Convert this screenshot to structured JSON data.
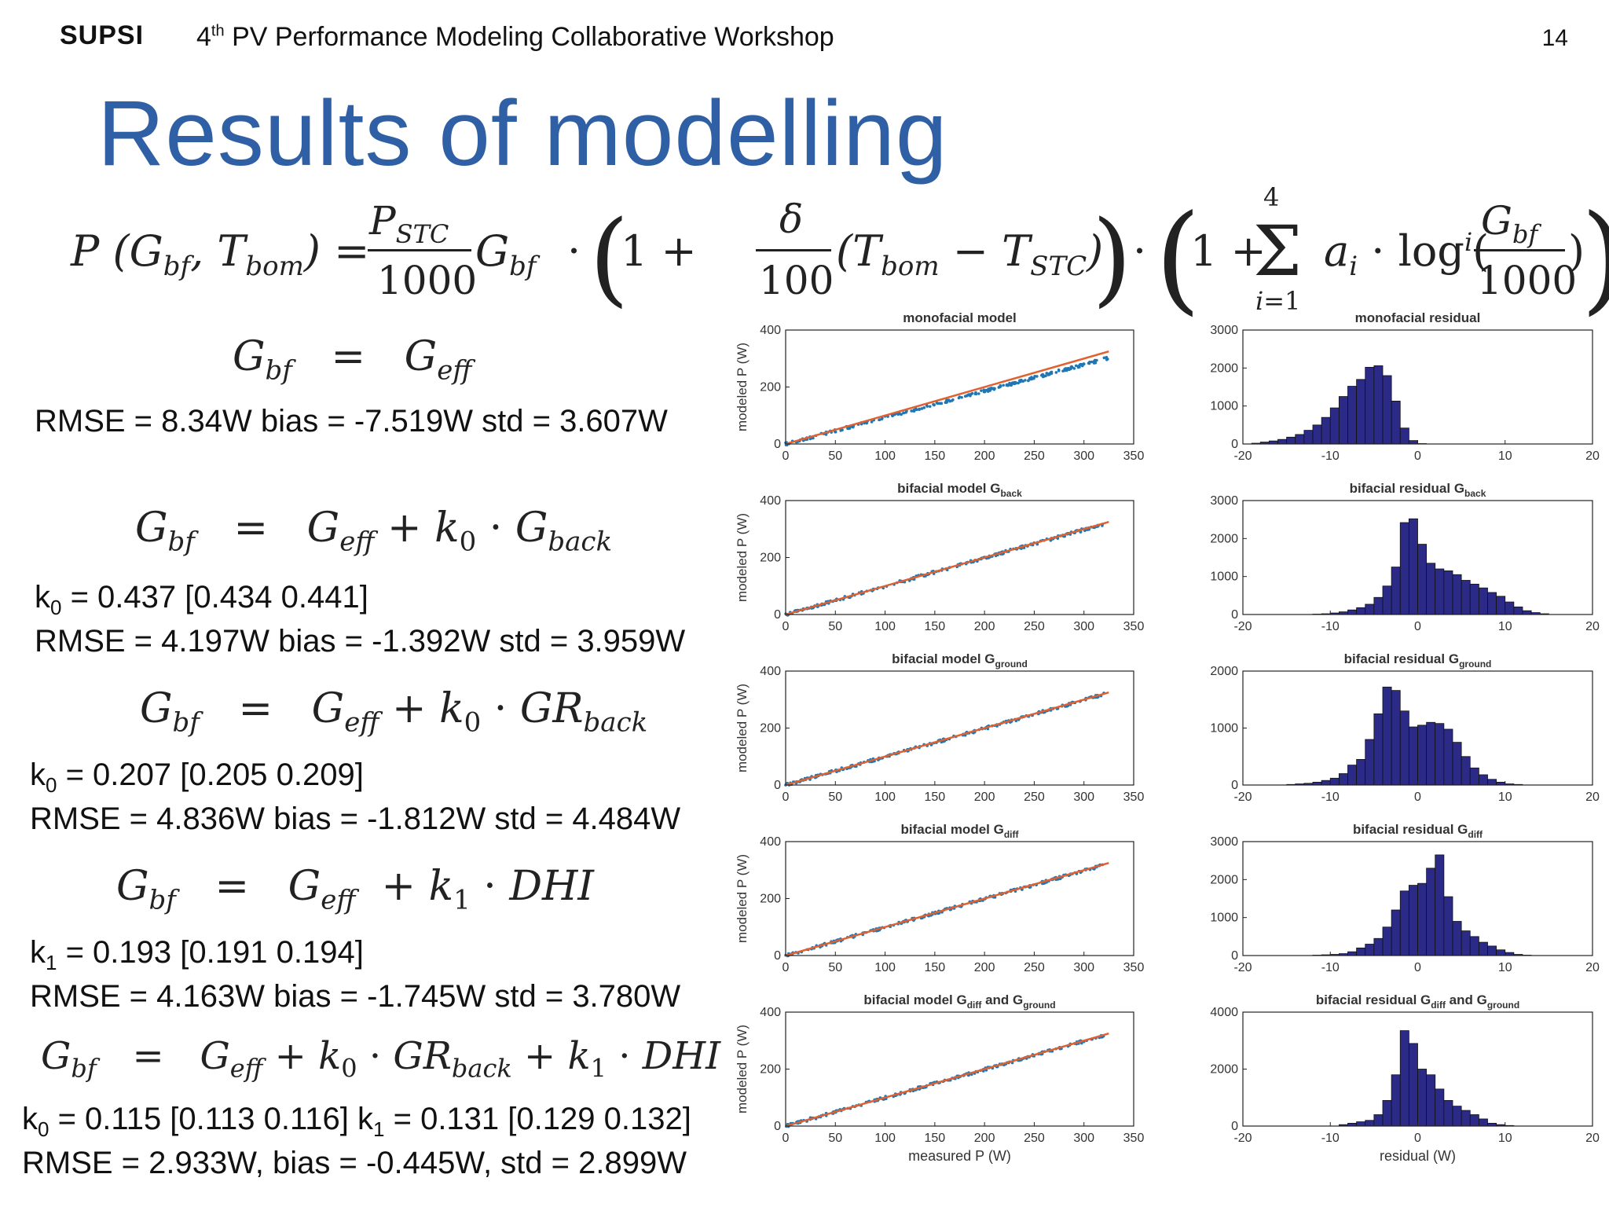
{
  "header": {
    "logo": "SUPSI",
    "workshop_ordinal": "4",
    "workshop_sup": "th",
    "workshop_title": "PV Performance Modeling Collaborative Workshop",
    "page_number": "14"
  },
  "title": "Results of modelling",
  "main_formula": {
    "lhs": "P (G",
    "text": "P(Gbf, Tbom) = PSTC/1000 · Gbf · (1 + δ/100 (Tbom − TSTC)) · (1 + Σ_{i=1}^{4} ai · log^i(Gbf/1000))"
  },
  "models": [
    {
      "equation": "Gbf = Geff",
      "stats": [
        "RMSE = 8.34W bias = -7.519W std = 3.607W"
      ]
    },
    {
      "equation": "Gbf = Geff + k0 · Gback",
      "stats": [
        "k0 = 0.437 [0.434 0.441]",
        "RMSE = 4.197W bias = -1.392W std = 3.959W"
      ]
    },
    {
      "equation": "Gbf = Geff + k0 · GRback",
      "stats": [
        "k0 = 0.207 [0.205 0.209]",
        "RMSE = 4.836W bias = -1.812W std = 4.484W"
      ]
    },
    {
      "equation": "Gbf = Geff + k1 · DHI",
      "stats": [
        "k1 = 0.193 [0.191 0.194]",
        "RMSE = 4.163W bias = -1.745W std = 3.780W"
      ]
    },
    {
      "equation": "Gbf = Geff + k0 · GRback + k1 · DHI",
      "stats": [
        "k0 = 0.115 [0.113 0.116] k1 = 0.131 [0.129 0.132]",
        "RMSE = 2.933W, bias = -0.445W, std = 2.899W"
      ]
    }
  ],
  "chart_data": [
    {
      "type": "scatter",
      "title": "monofacial model",
      "xlabel": "",
      "ylabel": "modeled P (W)",
      "xlim": [
        0,
        350
      ],
      "ylim": [
        0,
        400
      ],
      "xticks": [
        0,
        50,
        100,
        150,
        200,
        250,
        300,
        350
      ],
      "yticks": [
        0,
        200,
        400
      ],
      "series": [
        {
          "kind": "points",
          "x": [
            0,
            325
          ],
          "y": [
            0,
            302
          ]
        },
        {
          "kind": "line",
          "x": [
            0,
            325
          ],
          "y": [
            0,
            325
          ]
        }
      ]
    },
    {
      "type": "bar",
      "title": "monofacial residual",
      "xlabel": "",
      "ylabel": "",
      "xlim": [
        -20,
        20
      ],
      "ylim": [
        0,
        3000
      ],
      "xticks": [
        -20,
        -10,
        0,
        10,
        20
      ],
      "yticks": [
        0,
        1000,
        2000,
        3000
      ],
      "bin_width": 1,
      "bin_start": -20,
      "values": [
        0,
        20,
        50,
        80,
        120,
        180,
        250,
        360,
        500,
        700,
        950,
        1250,
        1520,
        1700,
        2020,
        2060,
        1800,
        1130,
        420,
        90,
        10,
        0,
        0,
        0,
        0,
        0,
        0,
        0,
        0,
        0,
        0,
        0,
        0,
        0,
        0,
        0,
        0,
        0,
        0,
        0
      ]
    },
    {
      "type": "scatter",
      "title": "bifacial model G",
      "title_sub": "back",
      "xlabel": "",
      "ylabel": "modeled P (W)",
      "xlim": [
        0,
        350
      ],
      "ylim": [
        0,
        400
      ],
      "xticks": [
        0,
        50,
        100,
        150,
        200,
        250,
        300,
        350
      ],
      "yticks": [
        0,
        200,
        400
      ],
      "series": [
        {
          "kind": "points",
          "x": [
            0,
            320
          ],
          "y": [
            0,
            318
          ]
        },
        {
          "kind": "line",
          "x": [
            0,
            325
          ],
          "y": [
            0,
            325
          ]
        }
      ]
    },
    {
      "type": "bar",
      "title": "bifacial residual G",
      "title_sub": "back",
      "xlabel": "",
      "ylabel": "",
      "xlim": [
        -20,
        20
      ],
      "ylim": [
        0,
        3000
      ],
      "xticks": [
        -20,
        -10,
        0,
        10,
        20
      ],
      "yticks": [
        0,
        1000,
        2000,
        3000
      ],
      "bin_width": 1,
      "bin_start": -20,
      "values": [
        0,
        0,
        0,
        0,
        0,
        0,
        0,
        0,
        10,
        20,
        40,
        70,
        120,
        180,
        270,
        450,
        750,
        1250,
        2420,
        2520,
        1850,
        1350,
        1200,
        1150,
        1050,
        900,
        800,
        700,
        580,
        480,
        330,
        200,
        100,
        50,
        20,
        0,
        0,
        0,
        0,
        0
      ]
    },
    {
      "type": "scatter",
      "title": "bifacial model G",
      "title_sub": "ground",
      "xlabel": "",
      "ylabel": "modeled P (W)",
      "xlim": [
        0,
        350
      ],
      "ylim": [
        0,
        400
      ],
      "xticks": [
        0,
        50,
        100,
        150,
        200,
        250,
        300,
        350
      ],
      "yticks": [
        0,
        200,
        400
      ],
      "series": [
        {
          "kind": "points",
          "x": [
            0,
            320
          ],
          "y": [
            0,
            318
          ]
        },
        {
          "kind": "line",
          "x": [
            0,
            325
          ],
          "y": [
            0,
            325
          ]
        }
      ]
    },
    {
      "type": "bar",
      "title": "bifacial residual G",
      "title_sub": "ground",
      "xlabel": "",
      "ylabel": "",
      "xlim": [
        -20,
        20
      ],
      "ylim": [
        0,
        2000
      ],
      "xticks": [
        -20,
        -10,
        0,
        10,
        20
      ],
      "yticks": [
        0,
        1000,
        2000
      ],
      "bin_width": 1,
      "bin_start": -20,
      "values": [
        0,
        0,
        0,
        0,
        0,
        10,
        20,
        30,
        50,
        80,
        120,
        200,
        350,
        450,
        800,
        1250,
        1720,
        1660,
        1300,
        1020,
        1050,
        1100,
        1080,
        980,
        750,
        500,
        300,
        180,
        100,
        50,
        20,
        10,
        0,
        0,
        0,
        0,
        0,
        0,
        0,
        0
      ]
    },
    {
      "type": "scatter",
      "title": "bifacial model G",
      "title_sub": "diff",
      "xlabel": "",
      "ylabel": "modeled P (W)",
      "xlim": [
        0,
        350
      ],
      "ylim": [
        0,
        400
      ],
      "xticks": [
        0,
        50,
        100,
        150,
        200,
        250,
        300,
        350
      ],
      "yticks": [
        0,
        200,
        400
      ],
      "series": [
        {
          "kind": "points",
          "x": [
            0,
            320
          ],
          "y": [
            0,
            318
          ]
        },
        {
          "kind": "line",
          "x": [
            0,
            325
          ],
          "y": [
            0,
            325
          ]
        }
      ]
    },
    {
      "type": "bar",
      "title": "bifacial residual G",
      "title_sub": "diff",
      "xlabel": "",
      "ylabel": "",
      "xlim": [
        -20,
        20
      ],
      "ylim": [
        0,
        3000
      ],
      "xticks": [
        -20,
        -10,
        0,
        10,
        20
      ],
      "yticks": [
        0,
        1000,
        2000,
        3000
      ],
      "bin_width": 1,
      "bin_start": -20,
      "values": [
        0,
        0,
        0,
        0,
        0,
        0,
        0,
        0,
        10,
        20,
        30,
        50,
        100,
        200,
        300,
        450,
        750,
        1200,
        1700,
        1850,
        1900,
        2300,
        2650,
        1550,
        900,
        650,
        500,
        350,
        250,
        150,
        80,
        30,
        10,
        0,
        0,
        0,
        0,
        0,
        0,
        0
      ]
    },
    {
      "type": "scatter",
      "title": "bifacial model G",
      "title_sub": "diff",
      "title_mid": "and G",
      "title_sub2": "ground",
      "xlabel": "measured P (W)",
      "ylabel": "modeled P (W)",
      "xlim": [
        0,
        350
      ],
      "ylim": [
        0,
        400
      ],
      "xticks": [
        0,
        50,
        100,
        150,
        200,
        250,
        300,
        350
      ],
      "yticks": [
        0,
        200,
        400
      ],
      "series": [
        {
          "kind": "points",
          "x": [
            0,
            320
          ],
          "y": [
            0,
            318
          ]
        },
        {
          "kind": "line",
          "x": [
            0,
            325
          ],
          "y": [
            0,
            325
          ]
        }
      ]
    },
    {
      "type": "bar",
      "title": "bifacial residual G",
      "title_sub": "diff",
      "title_mid": "and G",
      "title_sub2": "ground",
      "xlabel": "residual (W)",
      "ylabel": "",
      "xlim": [
        -20,
        20
      ],
      "ylim": [
        0,
        4000
      ],
      "xticks": [
        -20,
        -10,
        0,
        10,
        20
      ],
      "yticks": [
        0,
        2000,
        4000
      ],
      "bin_width": 1,
      "bin_start": -20,
      "values": [
        0,
        0,
        0,
        0,
        0,
        0,
        0,
        0,
        0,
        0,
        0,
        50,
        100,
        150,
        200,
        400,
        900,
        1800,
        3350,
        2900,
        2000,
        1800,
        1300,
        900,
        700,
        550,
        400,
        250,
        100,
        50,
        20,
        0,
        0,
        0,
        0,
        0,
        0,
        0,
        0,
        0
      ]
    }
  ],
  "colors": {
    "title": "#2f5fa4",
    "scatter_points": "#1f77b4",
    "fit_line": "#e06030",
    "histogram": "#2c2a87"
  }
}
